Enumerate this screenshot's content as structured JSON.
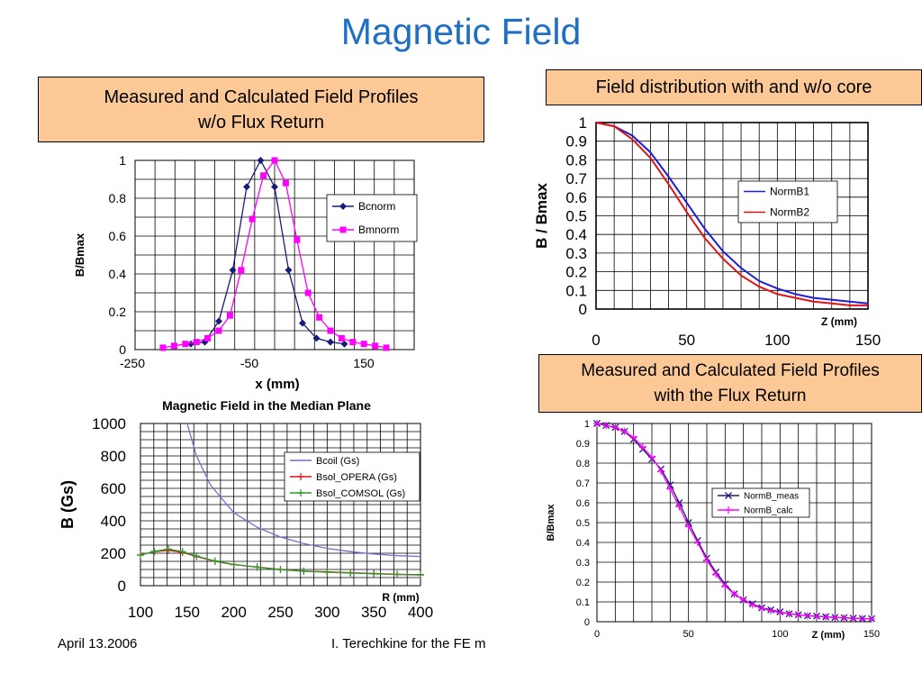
{
  "slide": {
    "title": "Magnetic Field",
    "callout_left": [
      "Measured and Calculated Field Profiles",
      "w/o Flux Return"
    ],
    "callout_topright": "Field distribution with and w/o core",
    "callout_botright": [
      "Measured and Calculated Field Profiles",
      "with the Flux Return"
    ],
    "footer_date": "April 13.2006",
    "footer_author": "I. Terechkine for the FE m"
  },
  "colors": {
    "title": "#1f6fc4",
    "callout_fill": "#fcc996",
    "blue": "#1f1fd6",
    "red": "#e01414",
    "magenta": "#ff00ff",
    "navy": "#1a1a7a",
    "green": "#2a9a2a"
  },
  "chart_data": [
    {
      "id": "chart1",
      "type": "line",
      "title": "",
      "xlabel": "x (mm)",
      "ylabel": "B/Bmax",
      "xlim": [
        -250,
        250
      ],
      "ylim": [
        0,
        1
      ],
      "xticks": [
        -250,
        -50,
        150
      ],
      "yticks": [
        "0",
        "0.2",
        "0.4",
        "0.6",
        "0.8",
        "1"
      ],
      "grid": true,
      "legend": "right",
      "series": [
        {
          "name": "Bcnorm",
          "color": "#1a1a7a",
          "marker": "diamond",
          "x": [
            -150,
            -125,
            -100,
            -75,
            -50,
            -25,
            0,
            25,
            50,
            75,
            100,
            125
          ],
          "y": [
            0.03,
            0.04,
            0.15,
            0.42,
            0.86,
            1.0,
            0.86,
            0.42,
            0.14,
            0.06,
            0.04,
            0.03
          ]
        },
        {
          "name": "Bmnorm",
          "color": "#ff00ff",
          "marker": "square",
          "x": [
            -200,
            -180,
            -160,
            -140,
            -120,
            -100,
            -80,
            -60,
            -40,
            -20,
            0,
            20,
            40,
            60,
            80,
            100,
            120,
            140,
            160,
            180,
            200
          ],
          "y": [
            0.01,
            0.02,
            0.03,
            0.04,
            0.06,
            0.1,
            0.18,
            0.42,
            0.69,
            0.92,
            1.0,
            0.88,
            0.58,
            0.3,
            0.17,
            0.1,
            0.06,
            0.04,
            0.03,
            0.02,
            0.01
          ]
        }
      ]
    },
    {
      "id": "chart2",
      "type": "line",
      "title": "",
      "xlabel": "Z (mm)",
      "ylabel": "B / Bmax",
      "xlim": [
        0,
        150
      ],
      "ylim": [
        0,
        1
      ],
      "xticks": [
        "0",
        "50",
        "100",
        "150"
      ],
      "yticks": [
        "0",
        "0.1",
        "0.2",
        "0.3",
        "0.4",
        "0.5",
        "0.6",
        "0.7",
        "0.8",
        "0.9",
        "1"
      ],
      "grid": true,
      "legend": "right",
      "series": [
        {
          "name": "NormB1",
          "color": "#1f1fd6",
          "x": [
            0,
            10,
            20,
            30,
            40,
            50,
            60,
            70,
            80,
            90,
            100,
            110,
            120,
            130,
            140,
            150
          ],
          "y": [
            1.0,
            0.98,
            0.93,
            0.84,
            0.71,
            0.57,
            0.43,
            0.31,
            0.22,
            0.15,
            0.11,
            0.08,
            0.06,
            0.05,
            0.04,
            0.03
          ]
        },
        {
          "name": "NormB2",
          "color": "#e01414",
          "x": [
            0,
            10,
            20,
            30,
            40,
            50,
            60,
            70,
            80,
            90,
            100,
            110,
            120,
            130,
            140,
            150
          ],
          "y": [
            1.0,
            0.98,
            0.91,
            0.81,
            0.67,
            0.52,
            0.38,
            0.27,
            0.18,
            0.12,
            0.08,
            0.06,
            0.04,
            0.03,
            0.02,
            0.02
          ]
        }
      ]
    },
    {
      "id": "chart3",
      "type": "line",
      "title": "Magnetic Field in the Median Plane",
      "xlabel": "R (mm)",
      "ylabel": "B (Gs)",
      "xlim": [
        100,
        400
      ],
      "ylim": [
        0,
        1000
      ],
      "xticks": [
        "100",
        "150",
        "200",
        "250",
        "300",
        "350",
        "400"
      ],
      "yticks": [
        "0",
        "200",
        "400",
        "600",
        "800",
        "1000"
      ],
      "grid": true,
      "legend": "right",
      "series": [
        {
          "name": "Bcoil (Gs)",
          "color": "#6f6fd0",
          "x": [
            150,
            160,
            175,
            200,
            225,
            250,
            275,
            300,
            325,
            350,
            375,
            400
          ],
          "y": [
            1000,
            800,
            620,
            450,
            360,
            300,
            260,
            230,
            210,
            195,
            185,
            180
          ]
        },
        {
          "name": "Bsol_OPERA (Gs)",
          "color": "#e01414",
          "marker": "plus",
          "x": [
            100,
            115,
            130,
            145,
            160,
            180,
            200,
            225,
            250,
            275,
            300,
            325,
            350,
            375,
            400
          ],
          "y": [
            190,
            210,
            218,
            205,
            180,
            150,
            130,
            115,
            100,
            90,
            85,
            80,
            75,
            70,
            68
          ]
        },
        {
          "name": "Bsol_COMSOL (Gs)",
          "color": "#2a9a2a",
          "marker": "plus",
          "x": [
            100,
            115,
            130,
            145,
            160,
            180,
            200,
            225,
            250,
            275,
            300,
            325,
            350,
            375,
            400
          ],
          "y": [
            188,
            212,
            225,
            210,
            183,
            152,
            131,
            114,
            99,
            89,
            83,
            78,
            73,
            69,
            66
          ]
        }
      ]
    },
    {
      "id": "chart4",
      "type": "line",
      "title": "",
      "xlabel": "Z (mm)",
      "ylabel": "B/Bmax",
      "xlim": [
        0,
        150
      ],
      "ylim": [
        0,
        1
      ],
      "xticks": [
        "0",
        "50",
        "100",
        "150"
      ],
      "yticks": [
        "0",
        "0.1",
        "0.2",
        "0.3",
        "0.4",
        "0.5",
        "0.6",
        "0.7",
        "0.8",
        "0.9",
        "1"
      ],
      "grid": true,
      "legend": "right",
      "series": [
        {
          "name": "NormB_meas",
          "color": "#1a1a7a",
          "marker": "x",
          "x": [
            0,
            5,
            10,
            15,
            20,
            25,
            30,
            35,
            40,
            45,
            50,
            55,
            60,
            65,
            70,
            75,
            80,
            85,
            90,
            95,
            100,
            105,
            110,
            115,
            120,
            125,
            130,
            135,
            140,
            145,
            150
          ],
          "y": [
            1.0,
            0.99,
            0.98,
            0.96,
            0.92,
            0.87,
            0.82,
            0.77,
            0.69,
            0.6,
            0.5,
            0.41,
            0.32,
            0.25,
            0.19,
            0.14,
            0.11,
            0.09,
            0.07,
            0.06,
            0.05,
            0.04,
            0.035,
            0.03,
            0.028,
            0.025,
            0.022,
            0.02,
            0.018,
            0.016,
            0.015
          ]
        },
        {
          "name": "NormB_calc",
          "color": "#ff00ff",
          "marker": "plus",
          "x": [
            0,
            5,
            10,
            15,
            20,
            25,
            30,
            35,
            40,
            45,
            50,
            55,
            60,
            65,
            70,
            75,
            80,
            85,
            90,
            95,
            100,
            105,
            110,
            115,
            120,
            125,
            130,
            135,
            140,
            145,
            150
          ],
          "y": [
            1.0,
            0.99,
            0.98,
            0.96,
            0.93,
            0.88,
            0.83,
            0.76,
            0.67,
            0.58,
            0.48,
            0.4,
            0.31,
            0.24,
            0.18,
            0.14,
            0.11,
            0.085,
            0.068,
            0.056,
            0.047,
            0.04,
            0.035,
            0.03,
            0.027,
            0.024,
            0.021,
            0.019,
            0.017,
            0.015,
            0.014
          ]
        }
      ]
    }
  ]
}
